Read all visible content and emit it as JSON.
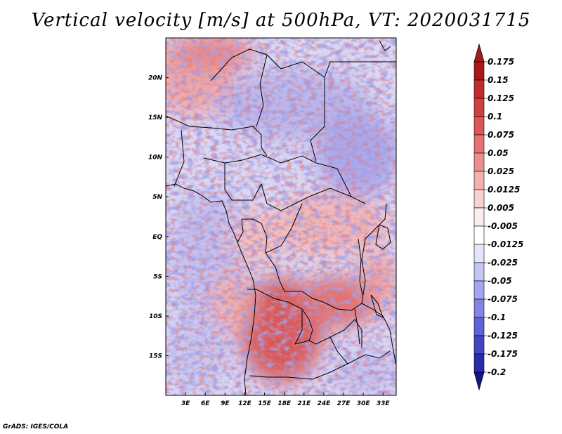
{
  "title": "Vertical velocity [m/s] at 500hPa, VT: 2020031715",
  "footer": "GrADS: IGES/COLA",
  "map": {
    "lat_labels": [
      "20N",
      "15N",
      "10N",
      "5N",
      "EQ",
      "5S",
      "10S",
      "15S"
    ],
    "lon_labels": [
      "3E",
      "6E",
      "9E",
      "12E",
      "15E",
      "18E",
      "21E",
      "24E",
      "27E",
      "30E",
      "33E"
    ],
    "lat_values": [
      20,
      15,
      10,
      5,
      0,
      -5,
      -10,
      -15
    ],
    "lon_values": [
      3,
      6,
      9,
      12,
      15,
      18,
      21,
      24,
      27,
      30,
      33
    ],
    "lat_range": [
      -20,
      25
    ],
    "lon_range": [
      0,
      35
    ],
    "field": "Vertical velocity",
    "level": "500hPa",
    "units": "m/s"
  },
  "colorbar": {
    "labels": [
      "0.175",
      "0.15",
      "0.125",
      "0.1",
      "0.075",
      "0.05",
      "0.025",
      "0.0125",
      "0.005",
      "-0.005",
      "-0.0125",
      "-0.025",
      "-0.05",
      "-0.075",
      "-0.1",
      "-0.125",
      "-0.175",
      "-0.2"
    ],
    "colors": [
      "#a81a1a",
      "#c02c2c",
      "#d04040",
      "#dc5656",
      "#e47272",
      "#ec8e8e",
      "#f4b0b0",
      "#f9d2d2",
      "#fdeeee",
      "#ffffff",
      "#e4e4fc",
      "#c6c6f6",
      "#a6a6f0",
      "#8484e6",
      "#6262d8",
      "#4444c4",
      "#2a2aac",
      "#14148c"
    ],
    "top_arrow_color": "#a81a1a",
    "bottom_arrow_color": "#14148c"
  }
}
